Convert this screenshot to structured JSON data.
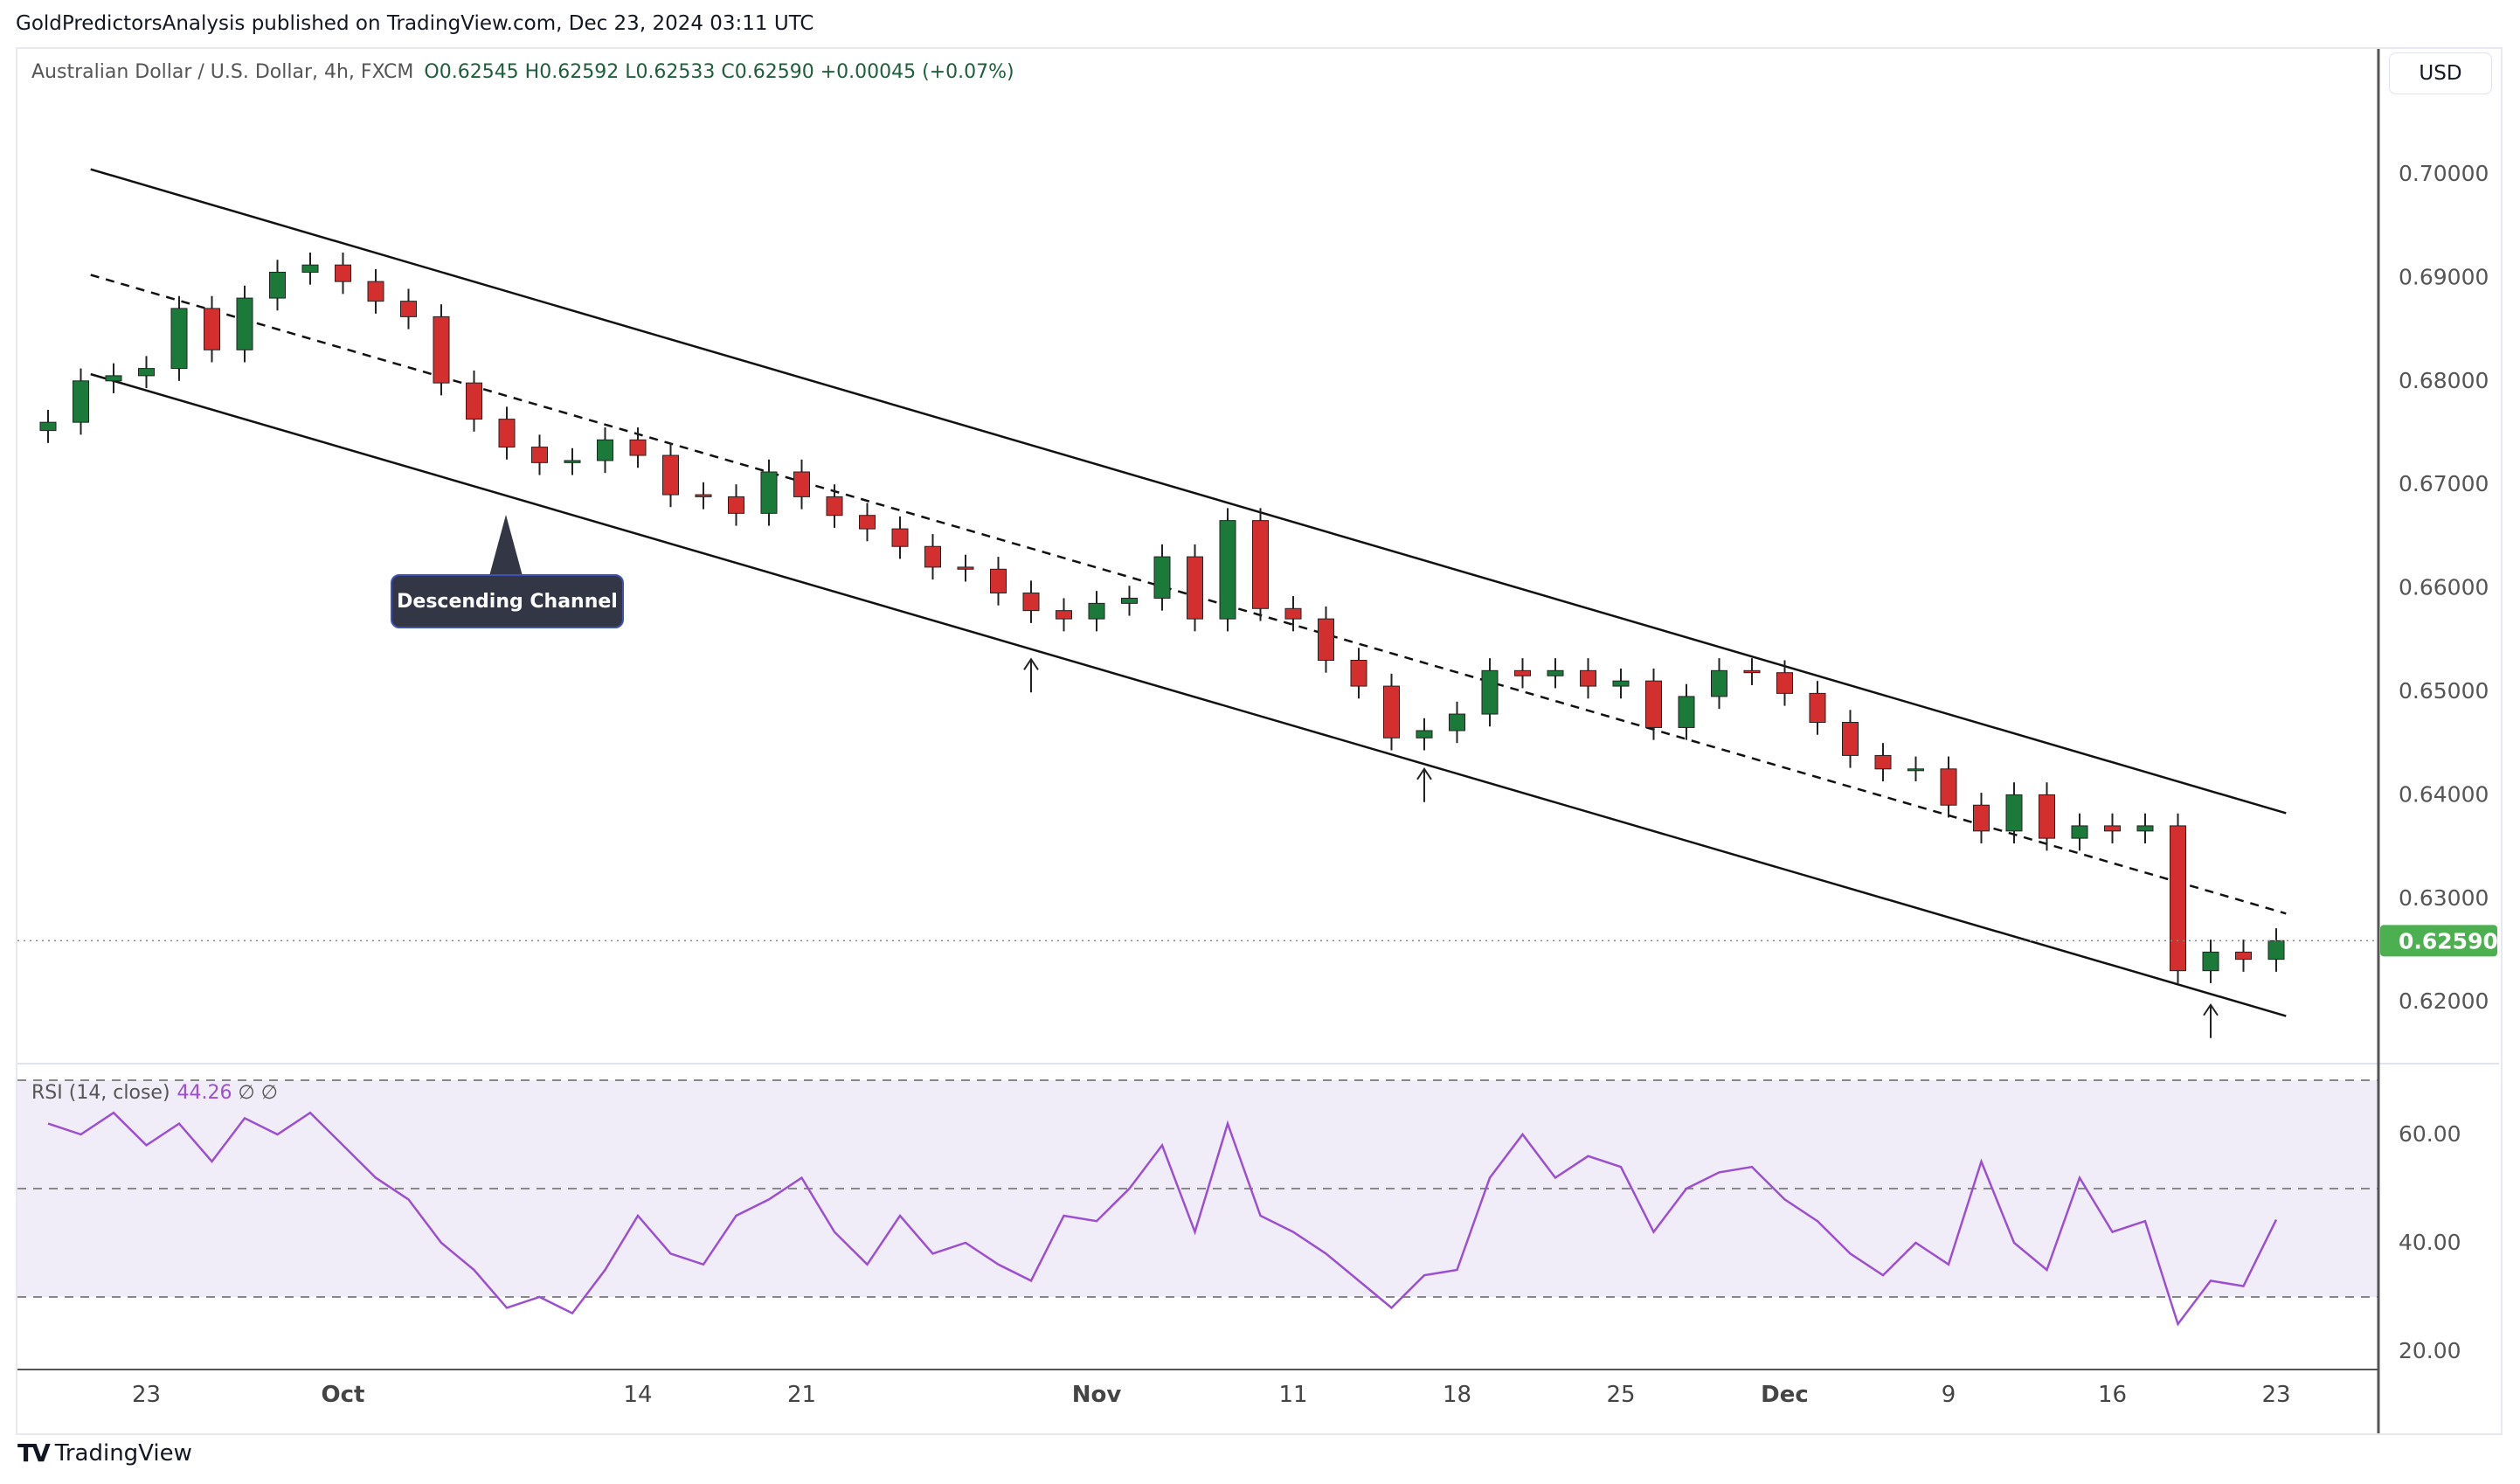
{
  "header": {
    "published": "GoldPredictorsAnalysis published on TradingView.com, Dec 23, 2024 03:11 UTC"
  },
  "legend": {
    "symbol": "Australian Dollar / U.S. Dollar, 4h, FXCM",
    "ohlc": "O0.62545  H0.62592  L0.62533  C0.62590  +0.00045 (+0.07%)"
  },
  "currency": "USD",
  "annotation": {
    "text": "Descending Channel"
  },
  "rsi_label": {
    "name": "RSI (14, close)",
    "value": "44.26",
    "extra": "∅ ∅"
  },
  "footer": {
    "brand": "TradingView"
  },
  "colors": {
    "up": "#26a69a",
    "down": "#d32f2f",
    "up_body": "#1b7a3a",
    "rsi": "#9c4fd1",
    "rsi_band": "#f0ecf8",
    "price_badge": "#4caf50"
  },
  "chart_data": [
    {
      "type": "candlestick",
      "price_ticks": [
        "0.70000",
        "0.69000",
        "0.68000",
        "0.67000",
        "0.66000",
        "0.65000",
        "0.64000",
        "0.63000",
        "0.62000"
      ],
      "ylim": [
        0.6135,
        0.7115
      ],
      "last_price": "0.62590",
      "date_ticks": [
        {
          "date": "Sep 23",
          "label": "23"
        },
        {
          "date": "Oct 1",
          "label": "Oct"
        },
        {
          "date": "Oct 14",
          "label": "14"
        },
        {
          "date": "Oct 21",
          "label": "21"
        },
        {
          "date": "Nov 1",
          "label": "Nov"
        },
        {
          "date": "Nov 11",
          "label": "11"
        },
        {
          "date": "Nov 18",
          "label": "18"
        },
        {
          "date": "Nov 25",
          "label": "25"
        },
        {
          "date": "Dec 2",
          "label": "Dec"
        },
        {
          "date": "Dec 9",
          "label": "9"
        },
        {
          "date": "Dec 16",
          "label": "16"
        },
        {
          "date": "Dec 23",
          "label": "23"
        }
      ],
      "dates": [
        "Sep 18",
        "Sep 19",
        "Sep 20",
        "Sep 23",
        "Sep 24",
        "Sep 25",
        "Sep 26",
        "Sep 27",
        "Sep 30",
        "Oct 1",
        "Oct 2",
        "Oct 3",
        "Oct 4",
        "Oct 7",
        "Oct 8",
        "Oct 9",
        "Oct 10",
        "Oct 11",
        "Oct 14",
        "Oct 15",
        "Oct 16",
        "Oct 17",
        "Oct 18",
        "Oct 21",
        "Oct 22",
        "Oct 23",
        "Oct 24",
        "Oct 25",
        "Oct 28",
        "Oct 29",
        "Oct 30",
        "Oct 31",
        "Nov 1",
        "Nov 4",
        "Nov 5",
        "Nov 6",
        "Nov 7",
        "Nov 8",
        "Nov 11",
        "Nov 12",
        "Nov 13",
        "Nov 14",
        "Nov 15",
        "Nov 18",
        "Nov 19",
        "Nov 20",
        "Nov 21",
        "Nov 22",
        "Nov 25",
        "Nov 26",
        "Nov 27",
        "Nov 28",
        "Nov 29",
        "Dec 2",
        "Dec 3",
        "Dec 4",
        "Dec 5",
        "Dec 6",
        "Dec 9",
        "Dec 10",
        "Dec 11",
        "Dec 12",
        "Dec 13",
        "Dec 16",
        "Dec 17",
        "Dec 18",
        "Dec 19",
        "Dec 20",
        "Dec 23"
      ],
      "close": [
        0.676,
        0.68,
        0.6805,
        0.6812,
        0.687,
        0.683,
        0.688,
        0.6905,
        0.6912,
        0.6896,
        0.6877,
        0.6862,
        0.6798,
        0.6763,
        0.6736,
        0.6721,
        0.6723,
        0.6743,
        0.6728,
        0.669,
        0.6688,
        0.6672,
        0.6712,
        0.6688,
        0.667,
        0.6657,
        0.664,
        0.662,
        0.6618,
        0.6595,
        0.6578,
        0.657,
        0.6585,
        0.659,
        0.663,
        0.657,
        0.6665,
        0.658,
        0.657,
        0.653,
        0.6505,
        0.6455,
        0.6462,
        0.6478,
        0.652,
        0.6515,
        0.652,
        0.6505,
        0.651,
        0.6465,
        0.6495,
        0.652,
        0.6518,
        0.6498,
        0.647,
        0.6438,
        0.6425,
        0.6425,
        0.639,
        0.6365,
        0.64,
        0.6358,
        0.637,
        0.6365,
        0.637,
        0.623,
        0.6248,
        0.6241,
        0.6259
      ],
      "channel": {
        "upper": [
          {
            "date": "Sep 20",
            "price": 0.6998
          },
          {
            "date": "Dec 23",
            "price": 0.6385
          }
        ],
        "middle": [
          {
            "date": "Sep 20",
            "price": 0.6896
          },
          {
            "date": "Dec 23",
            "price": 0.6288
          }
        ],
        "lower": [
          {
            "date": "Sep 20",
            "price": 0.68
          },
          {
            "date": "Dec 23",
            "price": 0.6189
          }
        ]
      },
      "arrows": [
        {
          "date": "Oct 30",
          "price": 0.6531
        },
        {
          "date": "Nov 15",
          "price": 0.6425
        },
        {
          "date": "Dec 19",
          "price": 0.6197
        }
      ]
    },
    {
      "type": "line",
      "title": "RSI (14, close)",
      "ticks": [
        "60.00",
        "40.00",
        "20.00"
      ],
      "bands": [
        70,
        50,
        30
      ],
      "ylim": [
        17,
        77
      ],
      "values": [
        62,
        60,
        64,
        58,
        62,
        55,
        63,
        60,
        64,
        58,
        52,
        48,
        40,
        35,
        28,
        30,
        27,
        35,
        45,
        38,
        36,
        45,
        48,
        52,
        42,
        36,
        45,
        38,
        40,
        36,
        33,
        45,
        44,
        50,
        58,
        42,
        62,
        45,
        42,
        38,
        33,
        28,
        34,
        35,
        52,
        60,
        52,
        56,
        54,
        42,
        50,
        53,
        54,
        48,
        44,
        38,
        34,
        40,
        36,
        55,
        40,
        35,
        52,
        42,
        44,
        25,
        33,
        32,
        44.26
      ]
    }
  ]
}
